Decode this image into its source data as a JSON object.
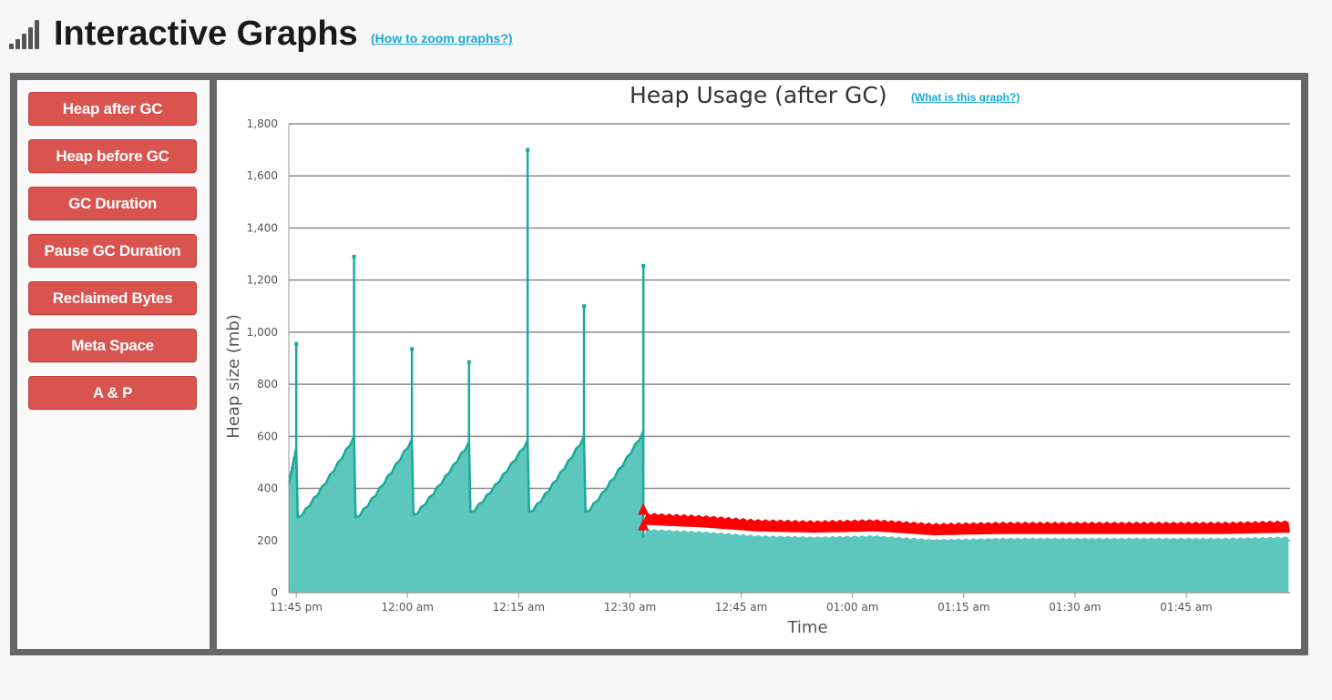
{
  "header": {
    "title": "Interactive Graphs",
    "zoom_help_link": "(How to zoom graphs?)"
  },
  "sidebar": {
    "buttons": [
      {
        "label": "Heap after GC"
      },
      {
        "label": "Heap before GC"
      },
      {
        "label": "GC Duration"
      },
      {
        "label": "Pause GC Duration"
      },
      {
        "label": "Reclaimed Bytes"
      },
      {
        "label": "Meta Space"
      },
      {
        "label": "A & P"
      }
    ]
  },
  "chart": {
    "title": "Heap Usage (after GC)",
    "help_link": "(What is this graph?)"
  },
  "colors": {
    "button_red": "#d9534f",
    "series_teal": "#1aa99b",
    "fill_teal": "#5dc7be",
    "marker_red": "#ff0000",
    "link_blue": "#1aa9d9"
  },
  "chart_data": {
    "type": "area",
    "title": "Heap Usage (after GC)",
    "xlabel": "Time",
    "ylabel": "Heap size (mb)",
    "ylim": [
      0,
      1800
    ],
    "yticks": [
      0,
      200,
      400,
      600,
      800,
      1000,
      1200,
      1400,
      1600,
      1800
    ],
    "xlim_minutes_from_11_45pm": [
      -1,
      134
    ],
    "xticks": [
      {
        "t": 0,
        "label": "11:45 pm"
      },
      {
        "t": 15,
        "label": "12:00 am"
      },
      {
        "t": 30,
        "label": "12:15 am"
      },
      {
        "t": 45,
        "label": "12:30 am"
      },
      {
        "t": 60,
        "label": "12:45 am"
      },
      {
        "t": 75,
        "label": "01:00 am"
      },
      {
        "t": 90,
        "label": "01:15 am"
      },
      {
        "t": 105,
        "label": "01:30 am"
      },
      {
        "t": 120,
        "label": "01:45 am"
      }
    ],
    "grid": true,
    "legend": "none",
    "series": [
      {
        "name": "heap_after_gc_sawtooth",
        "cycles": [
          {
            "start": -1.0,
            "low": 430,
            "high": 560,
            "end": 0.0,
            "spike": 955
          },
          {
            "start": 0.2,
            "low": 290,
            "high": 600,
            "end": 7.8,
            "spike": 1290
          },
          {
            "start": 8.0,
            "low": 290,
            "high": 590,
            "end": 15.6,
            "spike": 935
          },
          {
            "start": 15.8,
            "low": 300,
            "high": 580,
            "end": 23.3,
            "spike": 885
          },
          {
            "start": 23.5,
            "low": 310,
            "high": 585,
            "end": 31.2,
            "spike": 1700
          },
          {
            "start": 31.4,
            "low": 310,
            "high": 600,
            "end": 38.8,
            "spike": 1100
          },
          {
            "start": 39.0,
            "low": 310,
            "high": 620,
            "end": 46.8,
            "spike": 1255
          }
        ]
      },
      {
        "name": "heap_after_gc_steady",
        "x_range": [
          46.8,
          134
        ],
        "points": [
          {
            "t": 47,
            "v": 240
          },
          {
            "t": 55,
            "v": 230
          },
          {
            "t": 62,
            "v": 215
          },
          {
            "t": 70,
            "v": 210
          },
          {
            "t": 78,
            "v": 215
          },
          {
            "t": 86,
            "v": 200
          },
          {
            "t": 95,
            "v": 205
          },
          {
            "t": 105,
            "v": 205
          },
          {
            "t": 115,
            "v": 205
          },
          {
            "t": 125,
            "v": 205
          },
          {
            "t": 134,
            "v": 210
          }
        ],
        "marker_band": {
          "low": 230,
          "high": 270
        }
      }
    ]
  }
}
